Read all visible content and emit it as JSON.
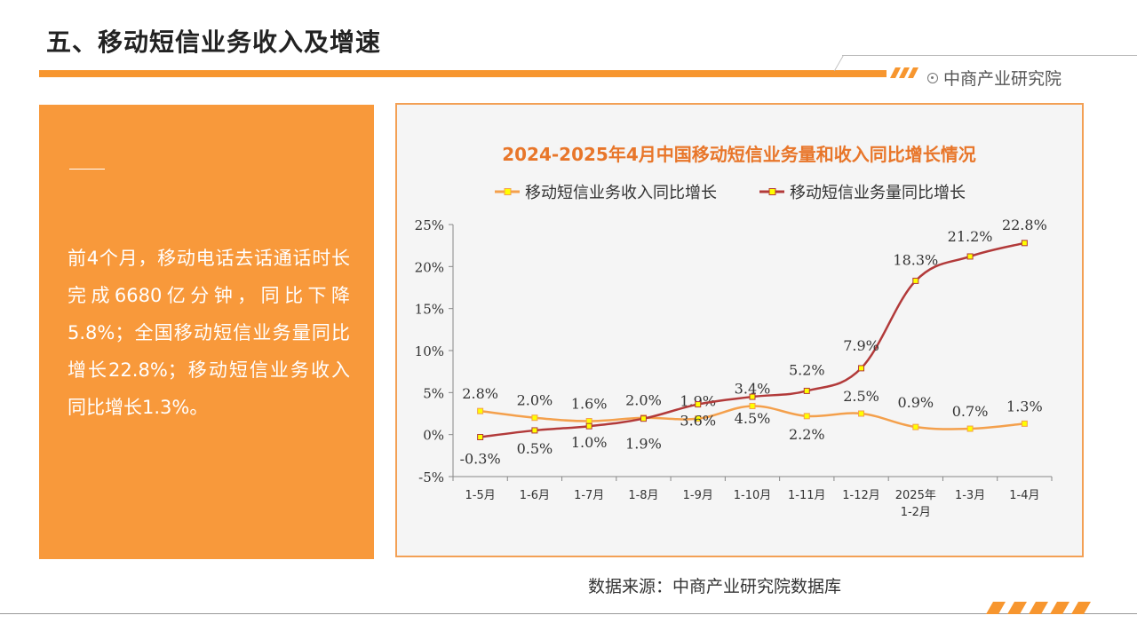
{
  "page": {
    "title": "五、移动短信业务收入及增速",
    "brand": "中商产业研究院",
    "source": "数据来源：中商产业研究院数据库"
  },
  "panel": {
    "text": "前4个月，移动电话去话通话时长完成6680亿分钟，同比下降5.8%；全国移动短信业务量同比增长22.8%；移动短信业务收入同比增长1.3%。"
  },
  "colors": {
    "accent": "#f7962f",
    "series_revenue": "#f4a04c",
    "series_volume": "#b23a3a",
    "marker": "#ffff00"
  },
  "chart_data": {
    "type": "line",
    "title": "2024-2025年4月中国移动短信业务量和收入同比增长情况",
    "categories": [
      "1-5月",
      "1-6月",
      "1-7月",
      "1-8月",
      "1-9月",
      "1-10月",
      "1-11月",
      "1-12月",
      "2025年\n1-2月",
      "1-3月",
      "1-4月"
    ],
    "series": [
      {
        "name": "移动短信业务收入同比增长",
        "values": [
          2.8,
          2.0,
          1.6,
          2.0,
          1.9,
          3.4,
          2.2,
          2.5,
          0.9,
          0.7,
          1.3
        ],
        "labels": [
          "2.8%",
          "2.0%",
          "1.6%",
          "2.0%",
          "1.9%",
          "3.4%",
          "2.2%",
          "2.5%",
          "0.9%",
          "0.7%",
          "1.3%"
        ]
      },
      {
        "name": "移动短信业务量同比增长",
        "values": [
          -0.3,
          0.5,
          1.0,
          1.9,
          3.6,
          4.5,
          5.2,
          7.9,
          18.3,
          21.2,
          22.8
        ],
        "labels": [
          "-0.3%",
          "0.5%",
          "1.0%",
          "1.9%",
          "3.6%",
          "4.5%",
          "5.2%",
          "7.9%",
          "18.3%",
          "21.2%",
          "22.8%"
        ]
      }
    ],
    "y_ticks": [
      "-5%",
      "0%",
      "5%",
      "10%",
      "15%",
      "20%",
      "25%"
    ],
    "ylim": [
      -5,
      25
    ],
    "legend": "top",
    "grid": false
  }
}
